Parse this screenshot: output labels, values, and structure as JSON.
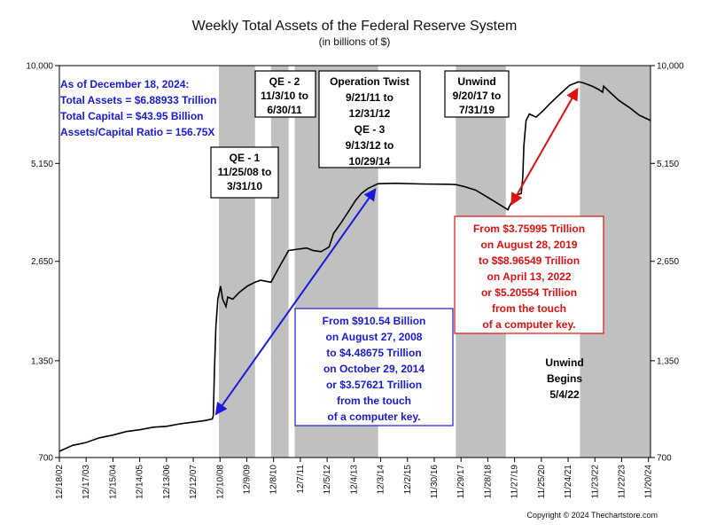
{
  "chart_data": {
    "type": "line",
    "title": "Weekly Total Assets of the Federal Reserve System",
    "subtitle": "(in billions of $)",
    "scale": "log",
    "ylim": [
      700,
      10000
    ],
    "y_ticks": [
      "700",
      "1,350",
      "2,650",
      "5,150",
      "10,000"
    ],
    "y_tick_values": [
      700,
      1350,
      2650,
      5150,
      10000
    ],
    "x_range": [
      "2002-12-18",
      "2024-12-18"
    ],
    "x_ticks": [
      "12/18/02",
      "12/17/03",
      "12/15/04",
      "12/14/05",
      "12/13/06",
      "12/12/07",
      "12/10/08",
      "12/9/09",
      "12/8/10",
      "12/7/11",
      "12/5/12",
      "12/4/13",
      "12/3/14",
      "12/2/15",
      "11/30/16",
      "11/29/17",
      "11/28/18",
      "11/27/19",
      "11/25/20",
      "11/24/21",
      "11/23/22",
      "11/22/23",
      "11/20/24"
    ],
    "x_tick_dates": [
      "2002-12-18",
      "2003-12-17",
      "2004-12-15",
      "2005-12-14",
      "2006-12-13",
      "2007-12-12",
      "2008-12-10",
      "2009-12-09",
      "2010-12-08",
      "2011-12-07",
      "2012-12-05",
      "2013-12-04",
      "2014-12-03",
      "2015-12-02",
      "2016-11-30",
      "2017-11-29",
      "2018-11-28",
      "2019-11-27",
      "2020-11-25",
      "2021-11-24",
      "2022-11-23",
      "2023-11-22",
      "2024-11-20"
    ],
    "grid": false,
    "series": [
      {
        "name": "",
        "color": "#000000",
        "points": [
          [
            "2002-12-18",
            730
          ],
          [
            "2003-06-15",
            760
          ],
          [
            "2003-12-15",
            775
          ],
          [
            "2004-06-15",
            800
          ],
          [
            "2004-12-15",
            815
          ],
          [
            "2005-06-15",
            835
          ],
          [
            "2005-12-15",
            845
          ],
          [
            "2006-06-15",
            860
          ],
          [
            "2006-12-15",
            865
          ],
          [
            "2007-06-15",
            880
          ],
          [
            "2007-12-15",
            890
          ],
          [
            "2008-06-01",
            900
          ],
          [
            "2008-08-27",
            910
          ],
          [
            "2008-09-10",
            930
          ],
          [
            "2008-09-24",
            1250
          ],
          [
            "2008-10-15",
            1700
          ],
          [
            "2008-11-10",
            2050
          ],
          [
            "2008-12-17",
            2240
          ],
          [
            "2009-01-14",
            2050
          ],
          [
            "2009-03-01",
            1950
          ],
          [
            "2009-03-25",
            2080
          ],
          [
            "2009-06-01",
            2050
          ],
          [
            "2009-09-01",
            2150
          ],
          [
            "2009-12-15",
            2240
          ],
          [
            "2010-03-31",
            2300
          ],
          [
            "2010-06-15",
            2330
          ],
          [
            "2010-11-03",
            2300
          ],
          [
            "2011-02-01",
            2500
          ],
          [
            "2011-06-30",
            2850
          ],
          [
            "2011-09-21",
            2870
          ],
          [
            "2012-03-01",
            2900
          ],
          [
            "2012-06-01",
            2850
          ],
          [
            "2012-09-13",
            2830
          ],
          [
            "2012-12-31",
            2920
          ],
          [
            "2013-03-01",
            3200
          ],
          [
            "2013-06-15",
            3450
          ],
          [
            "2013-09-15",
            3700
          ],
          [
            "2013-12-31",
            4020
          ],
          [
            "2014-03-15",
            4200
          ],
          [
            "2014-06-15",
            4350
          ],
          [
            "2014-10-29",
            4486
          ],
          [
            "2015-06-15",
            4500
          ],
          [
            "2016-06-15",
            4480
          ],
          [
            "2017-06-15",
            4470
          ],
          [
            "2017-09-20",
            4460
          ],
          [
            "2018-01-15",
            4400
          ],
          [
            "2018-06-15",
            4300
          ],
          [
            "2018-12-15",
            4070
          ],
          [
            "2019-06-15",
            3850
          ],
          [
            "2019-08-28",
            3760
          ],
          [
            "2019-09-20",
            3860
          ],
          [
            "2019-12-15",
            4150
          ],
          [
            "2020-02-26",
            4200
          ],
          [
            "2020-03-18",
            4700
          ],
          [
            "2020-04-01",
            5800
          ],
          [
            "2020-05-01",
            6900
          ],
          [
            "2020-06-15",
            7200
          ],
          [
            "2020-09-15",
            7050
          ],
          [
            "2020-12-15",
            7350
          ],
          [
            "2021-03-15",
            7700
          ],
          [
            "2021-06-15",
            8050
          ],
          [
            "2021-09-15",
            8400
          ],
          [
            "2021-12-15",
            8750
          ],
          [
            "2022-04-13",
            8965
          ],
          [
            "2022-06-15",
            8900
          ],
          [
            "2022-10-15",
            8700
          ],
          [
            "2023-01-15",
            8500
          ],
          [
            "2023-03-08",
            8350
          ],
          [
            "2023-03-22",
            8700
          ],
          [
            "2023-06-15",
            8350
          ],
          [
            "2023-10-15",
            7900
          ],
          [
            "2024-03-15",
            7500
          ],
          [
            "2024-07-15",
            7150
          ],
          [
            "2024-12-18",
            6889
          ]
        ]
      }
    ],
    "shaded_periods": [
      {
        "label": "QE - 1",
        "start": "2008-11-25",
        "end": "2010-03-31"
      },
      {
        "label": "QE - 2",
        "start": "2010-11-03",
        "end": "2011-06-30"
      },
      {
        "label": "Operation Twist",
        "start": "2011-09-21",
        "end": "2012-12-31"
      },
      {
        "label": "QE - 3",
        "start": "2012-09-13",
        "end": "2014-10-29"
      },
      {
        "label": "Unwind",
        "start": "2017-09-20",
        "end": "2019-07-31"
      },
      {
        "label": "Unwind Begins",
        "start": "2022-05-04",
        "end": "2024-12-18"
      }
    ],
    "annotations": {
      "summary_lines": [
        "As of December 18, 2024:",
        "Total Assets = $6.88933 Trillion",
        "Total Capital  = $43.95 Billion",
        "Assets/Capital Ratio = 156.75X"
      ],
      "qe1_lines": [
        "QE - 1",
        "11/25/08 to",
        "3/31/10"
      ],
      "qe2_lines": [
        "QE - 2",
        "11/3/10 to",
        "6/30/11"
      ],
      "twist_lines": [
        "Operation Twist",
        "9/21/11 to",
        "12/31/12",
        "QE - 3",
        "9/13/12 to",
        "10/29/14"
      ],
      "unwind_lines": [
        "Unwind",
        "9/20/17 to",
        "7/31/19"
      ],
      "unwind_begins_lines": [
        "Unwind",
        "Begins",
        "5/4/22"
      ],
      "blue_box_lines": [
        "From $910.54 Billion",
        "on August 27, 2008",
        "to $4.48675 Trillion",
        "on October 29, 2014",
        "or $3.57621 Trillion",
        "from the touch",
        "of a computer key."
      ],
      "red_box_lines": [
        "From $3.75995 Trillion",
        "on August 28, 2019",
        "to $$8.96549 Trillion",
        "on April 13, 2022",
        "or $5.20554 Trillion",
        "from the touch",
        "of a computer key."
      ],
      "blue_arrow": {
        "from": [
          "2008-08-27",
          910.54
        ],
        "to": [
          "2014-10-29",
          4486.75
        ]
      },
      "red_arrow": {
        "from": [
          "2019-08-28",
          3759.95
        ],
        "to": [
          "2022-04-13",
          8965.49
        ]
      }
    },
    "colors": {
      "line": "#000000",
      "shade": "#c0c0c0",
      "blue": "#1a1adb",
      "red": "#e01010",
      "axis": "#000000"
    },
    "copyright": "Copyright © 2024 Thechartstore.com"
  }
}
